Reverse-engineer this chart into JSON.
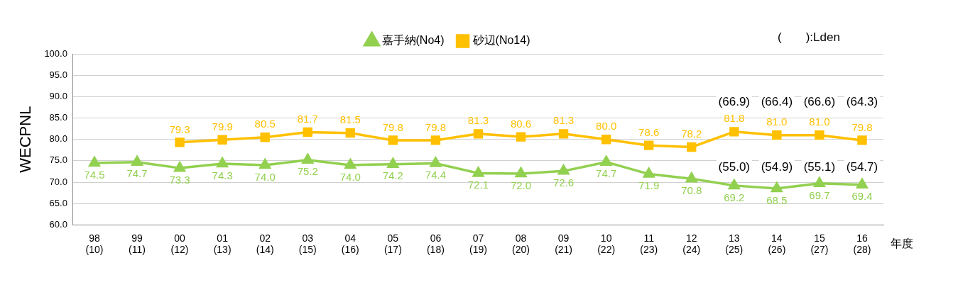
{
  "chart_data": {
    "type": "line",
    "ylabel": "WECPNL",
    "xlabel": "年度",
    "categories": [
      "98\n(10)",
      "99\n(11)",
      "00\n(12)",
      "01\n(13)",
      "02\n(14)",
      "03\n(15)",
      "04\n(16)",
      "05\n(17)",
      "06\n(18)",
      "07\n(19)",
      "08\n(20)",
      "09\n(21)",
      "10\n(22)",
      "11\n(23)",
      "12\n(24)",
      "13\n(25)",
      "14\n(26)",
      "15\n(27)",
      "16\n(28)"
    ],
    "series": [
      {
        "name": "嘉手納(No4)",
        "color": "#92d050",
        "marker": "triangle",
        "values": [
          74.5,
          74.7,
          73.3,
          74.3,
          74.0,
          75.2,
          74.0,
          74.2,
          74.4,
          72.1,
          72.0,
          72.6,
          74.7,
          71.9,
          70.8,
          69.2,
          68.5,
          69.7,
          69.4
        ],
        "value_labels": [
          "74.5",
          "74.7",
          "73.3",
          "74.3",
          "74.0",
          "75.2",
          "74.0",
          "74.2",
          "74.4",
          "72.1",
          "72.0",
          "72.6",
          "74.7",
          "71.9",
          "70.8",
          "69.2",
          "68.5",
          "69.7",
          "69.4"
        ]
      },
      {
        "name": "砂辺(No14)",
        "color": "#ffc000",
        "marker": "square",
        "values": [
          null,
          null,
          79.3,
          79.9,
          80.5,
          81.7,
          81.5,
          79.8,
          79.8,
          81.3,
          80.6,
          81.3,
          80.0,
          78.6,
          78.2,
          81.8,
          81.0,
          81.0,
          79.8
        ],
        "value_labels": [
          null,
          null,
          "79.3",
          "79.9",
          "80.5",
          "81.7",
          "81.5",
          "79.8",
          "79.8",
          "81.3",
          "80.6",
          "81.3",
          "80.0",
          "78.6",
          "78.2",
          "81.8",
          "81.0",
          "81.0",
          "79.8"
        ]
      }
    ],
    "ylim": [
      60,
      100
    ],
    "yticks": [
      "60.0",
      "65.0",
      "70.0",
      "75.0",
      "80.0",
      "85.0",
      "90.0",
      "95.0",
      "100.0"
    ],
    "grid": "y",
    "legend": "top",
    "annotations": [
      "(　　):Lden",
      "(66.9)",
      "(66.4)",
      "(66.6)",
      "(64.3)",
      "(55.0)",
      "(54.9)",
      "(55.1)",
      "(54.7)"
    ]
  }
}
